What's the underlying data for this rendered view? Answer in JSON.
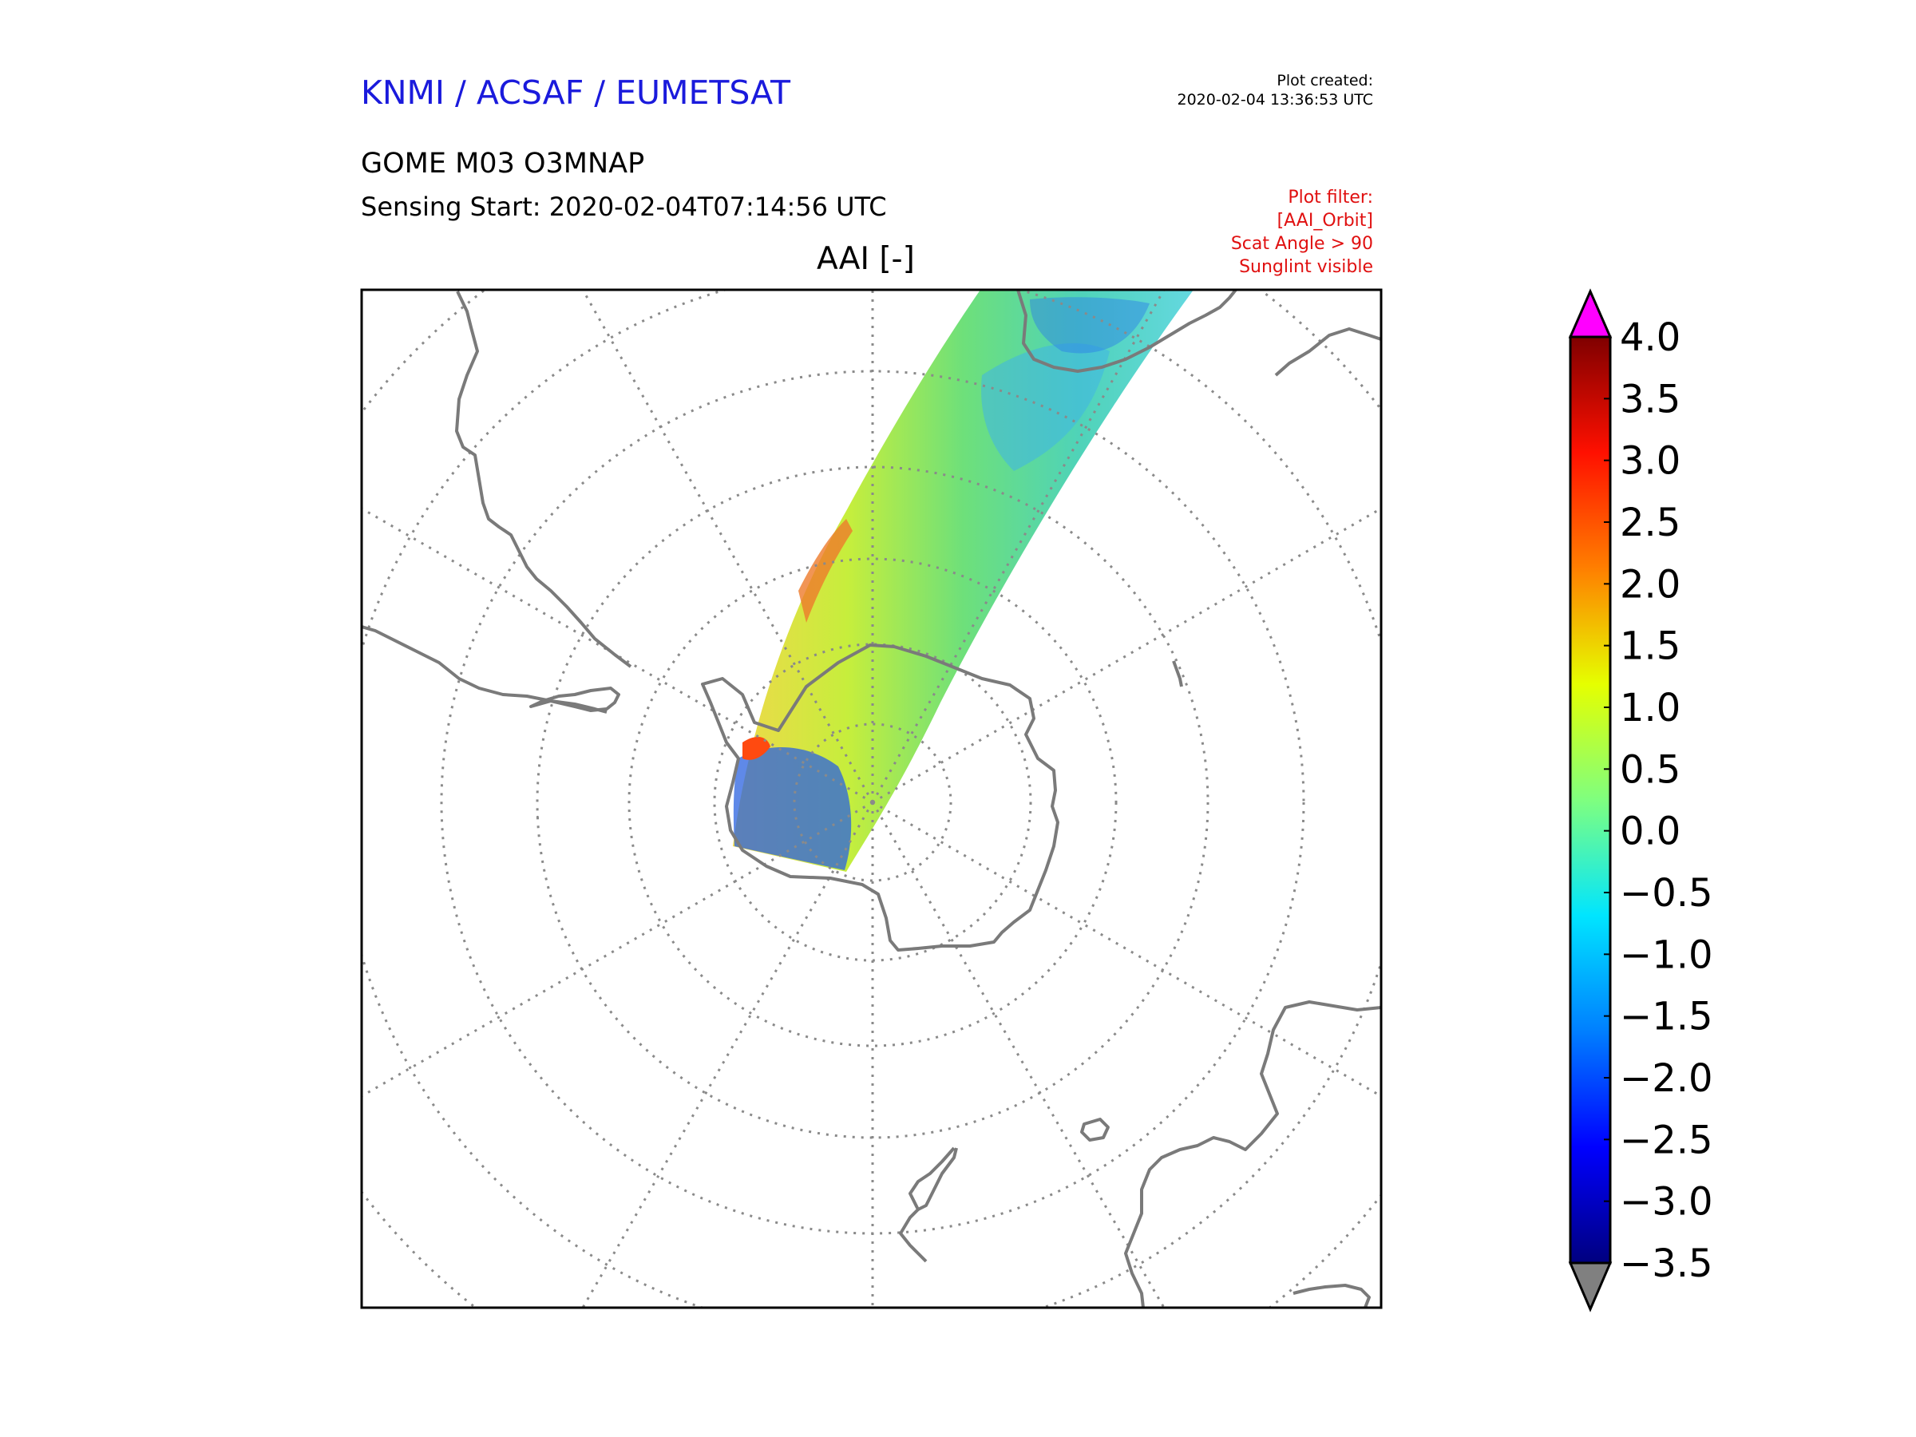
{
  "header": {
    "org": "KNMI / ACSAF / EUMETSAT",
    "created_label": "Plot created:",
    "created_time": "2020-02-04 13:36:53 UTC",
    "product": "GOME M03 O3MNAP",
    "sensing_start": "Sensing Start: 2020-02-04T07:14:56 UTC",
    "filters": [
      "Plot filter:",
      "[AAI_Orbit]",
      "Scat Angle > 90",
      "Sunglint visible"
    ]
  },
  "map": {
    "title": "AAI [-]",
    "projection": "south polar stereographic",
    "variable": "Absorbing Aerosol Index"
  },
  "colorbar": {
    "min": -3.5,
    "max": 4.0,
    "ticks": [
      4.0,
      3.5,
      3.0,
      2.5,
      2.0,
      1.5,
      1.0,
      0.5,
      0.0,
      -0.5,
      -1.0,
      -1.5,
      -2.0,
      -2.5,
      -3.0,
      -3.5
    ],
    "tick_labels": [
      "4.0",
      "3.5",
      "3.0",
      "2.5",
      "2.0",
      "1.5",
      "1.0",
      "0.5",
      "0.0",
      "−0.5",
      "−1.0",
      "−1.5",
      "−2.0",
      "−2.5",
      "−3.0",
      "−3.5"
    ],
    "over_color": "#ff00ff",
    "under_color": "#808080",
    "stops": [
      "#00007f",
      "#0000ff",
      "#007fff",
      "#00e5ff",
      "#7fff7f",
      "#e5ff00",
      "#ff7f00",
      "#ff1000",
      "#7f0000"
    ]
  },
  "colors": {
    "coast": "#7a7a7a",
    "grid": "#8a8a8a",
    "title_blue": "#1a1adc",
    "filter_red": "#e01010"
  }
}
